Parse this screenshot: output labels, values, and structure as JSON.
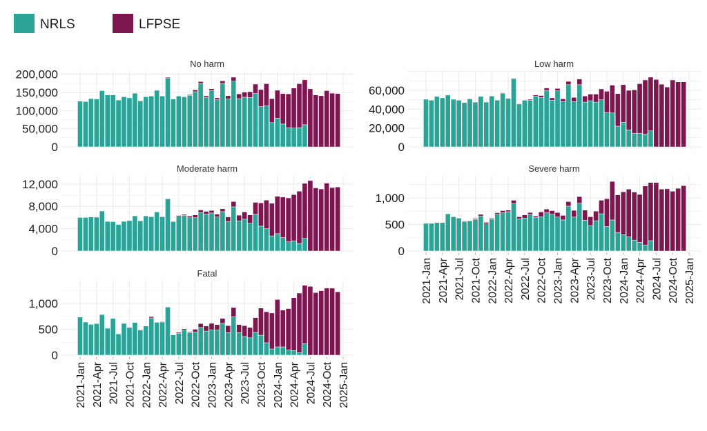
{
  "chart_data": {
    "type": "bar",
    "stacked": true,
    "legend": {
      "position": "top-left",
      "entries": [
        "NRLS",
        "LFPSE"
      ]
    },
    "colors": {
      "NRLS": "#2ba397",
      "LFPSE": "#7e1650"
    },
    "grid": true,
    "x_tick_labels": [
      "2021-Jan",
      "2021-Apr",
      "2021-Jul",
      "2021-Oct",
      "2022-Jan",
      "2022-Apr",
      "2022-Jul",
      "2022-Oct",
      "2023-Jan",
      "2023-Apr",
      "2023-Jul",
      "2023-Oct",
      "2024-Jan",
      "2024-Apr",
      "2024-Jul",
      "2024-Oct",
      "2025-Jan"
    ],
    "x_start": "2021-01",
    "x_end": "2024-12",
    "panels": [
      {
        "title": "No harm",
        "ylim": [
          0,
          209000
        ],
        "yticks": [
          0,
          50000,
          100000,
          150000,
          200000
        ],
        "ytick_labels": [
          "0",
          "50,000",
          "100,000",
          "150,000",
          "200,000"
        ],
        "total": [
          126000,
          125000,
          133000,
          132000,
          155000,
          143000,
          143000,
          129000,
          138000,
          135000,
          149000,
          128000,
          138000,
          140000,
          157000,
          140000,
          192000,
          132000,
          141000,
          139000,
          144000,
          157000,
          180000,
          141000,
          160000,
          135000,
          182000,
          141000,
          192000,
          146000,
          151000,
          152000,
          173000,
          158000,
          174000,
          133000,
          156000,
          147000,
          146000,
          162000,
          174000,
          185000,
          160000,
          143000,
          141000,
          155000,
          148000,
          147000
        ],
        "NRLS": [
          126000,
          125000,
          133000,
          132000,
          155000,
          143000,
          143000,
          129000,
          138000,
          135000,
          148000,
          127000,
          138000,
          140000,
          156000,
          140000,
          190000,
          132000,
          140000,
          138000,
          142000,
          152000,
          175000,
          137000,
          155000,
          130000,
          175000,
          132000,
          181000,
          133000,
          137000,
          136000,
          147000,
          111000,
          113000,
          67000,
          79000,
          63000,
          53000,
          52000,
          53000,
          61000,
          0,
          0,
          0,
          0,
          0,
          0
        ]
      },
      {
        "title": "Low harm",
        "ylim": [
          0,
          80500
        ],
        "yticks": [
          0,
          20000,
          40000,
          60000
        ],
        "ytick_labels": [
          "0",
          "20,000",
          "40,000",
          "60,000"
        ],
        "total": [
          50500,
          49500,
          53500,
          52000,
          55000,
          50500,
          49500,
          47000,
          51000,
          47500,
          53500,
          47500,
          54000,
          49500,
          57500,
          51500,
          73000,
          46000,
          50000,
          50500,
          55000,
          54500,
          62500,
          52000,
          62000,
          51000,
          69500,
          52500,
          72000,
          54000,
          56000,
          56000,
          61500,
          59000,
          65500,
          56500,
          66000,
          60000,
          60500,
          67000,
          71000,
          74000,
          71500,
          66500,
          63500,
          71000,
          69000,
          69000
        ],
        "NRLS": [
          50500,
          49500,
          53500,
          52000,
          55000,
          50500,
          49500,
          47000,
          51000,
          47500,
          53500,
          47500,
          54000,
          49500,
          57000,
          51500,
          72500,
          45500,
          49500,
          49500,
          54000,
          52500,
          60000,
          49500,
          59500,
          48000,
          66000,
          48000,
          66000,
          47500,
          49000,
          47500,
          50000,
          36500,
          36000,
          22000,
          26000,
          18000,
          14500,
          14500,
          13500,
          17000,
          0,
          0,
          0,
          0,
          0,
          0
        ]
      },
      {
        "title": "Moderate harm",
        "ylim": [
          0,
          13450
        ],
        "yticks": [
          0,
          4000,
          8000,
          12000
        ],
        "ytick_labels": [
          "0",
          "4,000",
          "8,000",
          "12,000"
        ],
        "total": [
          6000,
          6000,
          6100,
          6050,
          7150,
          5300,
          5250,
          4750,
          5300,
          5450,
          6350,
          5450,
          6350,
          6200,
          7050,
          6200,
          9400,
          5350,
          6350,
          6550,
          6250,
          6450,
          7350,
          7100,
          7250,
          6600,
          7550,
          6100,
          8850,
          6400,
          7000,
          6450,
          8700,
          8600,
          9100,
          8550,
          9800,
          9650,
          9500,
          10100,
          10700,
          12100,
          12600,
          11300,
          11100,
          12150,
          11350,
          11450
        ],
        "NRLS": [
          6000,
          6000,
          6100,
          6050,
          7150,
          5300,
          5250,
          4750,
          5300,
          5450,
          6300,
          5400,
          6300,
          6150,
          7000,
          6150,
          9350,
          5250,
          6150,
          6350,
          5950,
          5950,
          6900,
          6600,
          6800,
          6100,
          7050,
          5300,
          7900,
          5400,
          5700,
          4950,
          6550,
          4450,
          4000,
          2700,
          3100,
          2400,
          1650,
          1800,
          1350,
          2250,
          0,
          0,
          0,
          0,
          0,
          0
        ]
      },
      {
        "title": "Severe harm",
        "ylim": [
          0,
          1415
        ],
        "yticks": [
          0,
          500,
          1000
        ],
        "ytick_labels": [
          "0",
          "500",
          "1,000"
        ],
        "total": [
          520,
          520,
          535,
          535,
          700,
          645,
          620,
          565,
          575,
          610,
          690,
          540,
          615,
          720,
          760,
          770,
          955,
          645,
          680,
          725,
          660,
          735,
          790,
          760,
          725,
          670,
          930,
          765,
          1025,
          770,
          645,
          750,
          955,
          985,
          1310,
          1055,
          1115,
          1165,
          1110,
          1065,
          1225,
          1290,
          1290,
          1165,
          1170,
          1125,
          1180,
          1230
        ],
        "NRLS": [
          520,
          520,
          535,
          535,
          700,
          645,
          620,
          555,
          570,
          590,
          660,
          510,
          595,
          690,
          720,
          740,
          890,
          605,
          620,
          690,
          635,
          645,
          720,
          690,
          640,
          585,
          845,
          640,
          900,
          580,
          480,
          570,
          700,
          460,
          585,
          350,
          310,
          270,
          205,
          165,
          110,
          195,
          0,
          0,
          0,
          0,
          0,
          0
        ]
      },
      {
        "title": "Fatal",
        "ylim": [
          0,
          1440
        ],
        "yticks": [
          0,
          500,
          1000
        ],
        "ytick_labels": [
          "0",
          "500",
          "1,000"
        ],
        "total": [
          735,
          640,
          595,
          610,
          785,
          520,
          710,
          410,
          620,
          540,
          630,
          485,
          570,
          745,
          640,
          650,
          930,
          390,
          440,
          510,
          450,
          500,
          610,
          565,
          615,
          590,
          710,
          570,
          920,
          590,
          570,
          535,
          725,
          910,
          840,
          815,
          1075,
          870,
          900,
          1110,
          1200,
          1350,
          1330,
          1210,
          1245,
          1295,
          1295,
          1225
        ],
        "NRLS": [
          735,
          640,
          595,
          610,
          785,
          520,
          710,
          410,
          615,
          530,
          630,
          485,
          565,
          720,
          630,
          640,
          930,
          390,
          420,
          490,
          435,
          450,
          535,
          465,
          490,
          490,
          615,
          435,
          745,
          435,
          360,
          335,
          440,
          385,
          240,
          120,
          160,
          160,
          100,
          90,
          50,
          220,
          0,
          0,
          0,
          0,
          0,
          0
        ]
      }
    ]
  }
}
